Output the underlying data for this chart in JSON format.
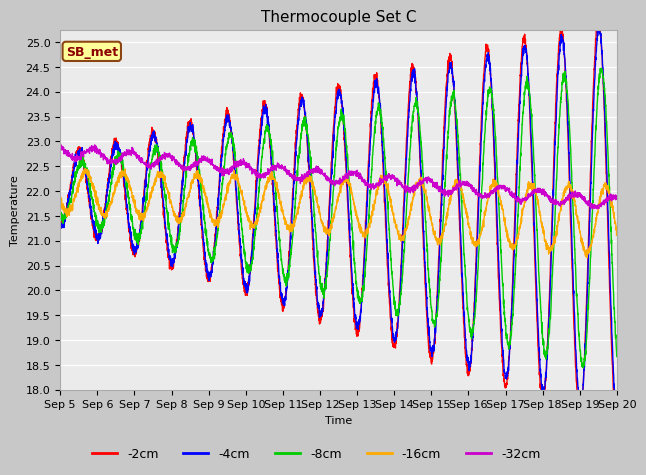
{
  "title": "Thermocouple Set C",
  "xlabel": "Time",
  "ylabel": "Temperature",
  "ylim": [
    18.0,
    25.25
  ],
  "yticks": [
    18.0,
    18.5,
    19.0,
    19.5,
    20.0,
    20.5,
    21.0,
    21.5,
    22.0,
    22.5,
    23.0,
    23.5,
    24.0,
    24.5,
    25.0
  ],
  "series_colors": {
    "-2cm": "#ff0000",
    "-4cm": "#0000ff",
    "-8cm": "#00cc00",
    "-16cm": "#ffaa00",
    "-32cm": "#cc00cc"
  },
  "xtick_labels": [
    "Sep 5",
    "Sep 6",
    "Sep 7",
    "Sep 8",
    "Sep 9",
    "Sep 10",
    "Sep 11",
    "Sep 12",
    "Sep 13",
    "Sep 14",
    "Sep 15",
    "Sep 16",
    "Sep 17",
    "Sep 18",
    "Sep 19",
    "Sep 20"
  ],
  "annotation": "SB_met",
  "plot_bg": "#ebebeb",
  "fig_bg": "#c8c8c8",
  "title_fontsize": 11,
  "axis_fontsize": 8,
  "legend_fontsize": 9
}
